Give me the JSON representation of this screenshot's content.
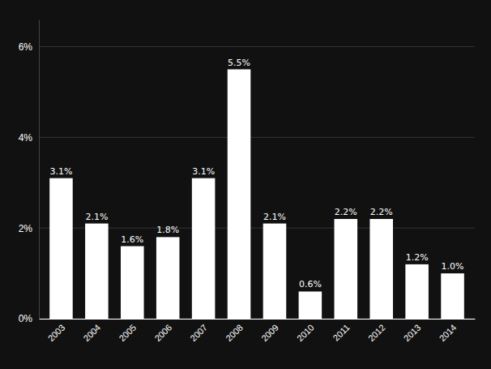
{
  "chart_data": {
    "type": "bar",
    "categories": [
      "2003",
      "2004",
      "2005",
      "2006",
      "2007",
      "2008",
      "2009",
      "2010",
      "2011",
      "2012",
      "2013",
      "2014"
    ],
    "values": [
      3.1,
      2.1,
      1.6,
      1.8,
      3.1,
      5.5,
      2.1,
      0.6,
      2.2,
      2.2,
      1.2,
      1.0
    ],
    "value_labels": [
      "3.1%",
      "2.1%",
      "1.6%",
      "1.8%",
      "3.1%",
      "5.5%",
      "2.1%",
      "0.6%",
      "2.2%",
      "2.2%",
      "1.2%",
      "1.0%"
    ],
    "data_labels": true,
    "color": "#ffffff",
    "ylim": [
      0,
      6.6
    ],
    "yticks": [
      {
        "value": 0,
        "label": "0%"
      },
      {
        "value": 2,
        "label": "2%"
      },
      {
        "value": 4,
        "label": "4%"
      },
      {
        "value": 6,
        "label": "6%"
      }
    ],
    "grid": true
  }
}
